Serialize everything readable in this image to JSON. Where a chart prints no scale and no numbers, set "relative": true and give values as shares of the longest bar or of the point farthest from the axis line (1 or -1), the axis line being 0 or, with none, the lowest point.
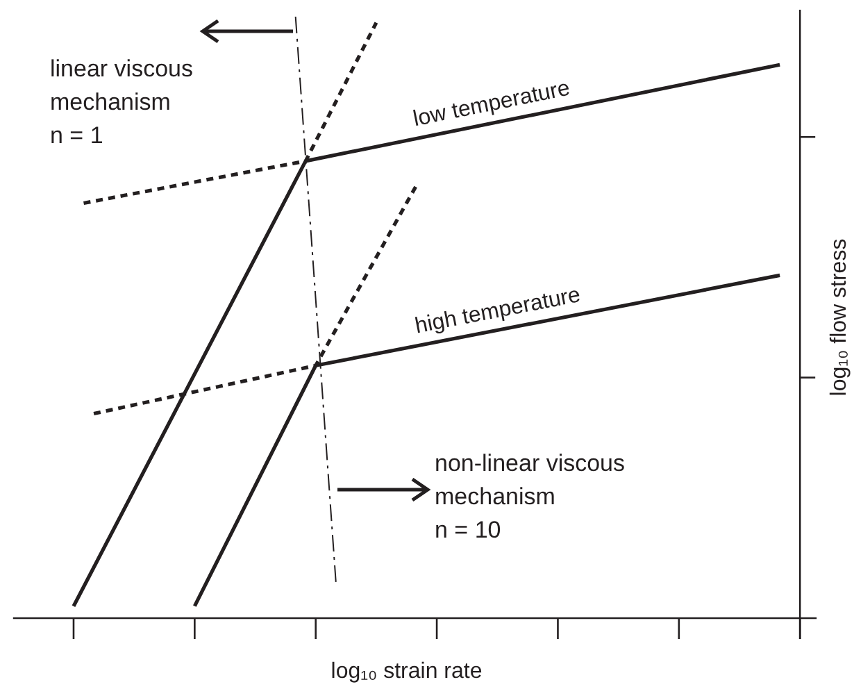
{
  "chart_data": {
    "type": "line",
    "relative": true,
    "xlabel": "log₁₀ strain rate",
    "ylabel": "log₁₀ flow stress",
    "categories": [
      null,
      null,
      null,
      null,
      null,
      null,
      null,
      null,
      null,
      null,
      null,
      null,
      null,
      null,
      null,
      null,
      null,
      null,
      null,
      null,
      null,
      null,
      null,
      null,
      null,
      null,
      null,
      null,
      null,
      null,
      null,
      null,
      null,
      null,
      null,
      null,
      null,
      null,
      null,
      null,
      null,
      null,
      null,
      null,
      null,
      null,
      null,
      null,
      null,
      null,
      null,
      null,
      null,
      null,
      null,
      null,
      null,
      null,
      null,
      null,
      null,
      null,
      null,
      null,
      null,
      null,
      null,
      null,
      null,
      null,
      null,
      null,
      null,
      null,
      null,
      null,
      null,
      null,
      null
    ],
    "series": [
      {
        "name": "low temperature",
        "color": "#231f20",
        "line_style": "solid",
        "values": [
          null,
          null,
          null,
          null,
          null,
          null,
          0.02,
          null,
          null,
          null,
          null,
          null,
          null,
          null,
          null,
          null,
          null,
          null,
          null,
          null,
          null,
          null,
          null,
          null,
          null,
          null,
          null,
          null,
          null,
          0.76,
          null,
          null,
          null,
          null,
          null,
          null,
          null,
          null,
          null,
          null,
          null,
          null,
          null,
          null,
          null,
          null,
          null,
          null,
          null,
          null,
          null,
          null,
          null,
          null,
          null,
          null,
          null,
          null,
          null,
          null,
          null,
          null,
          null,
          null,
          null,
          null,
          null,
          null,
          null,
          null,
          null,
          null,
          null,
          null,
          null,
          null,
          0.92,
          null,
          null
        ]
      },
      {
        "color": "#231f20",
        "line_style": "dotted",
        "values": [
          null,
          null,
          null,
          null,
          null,
          null,
          null,
          0.69,
          null,
          null,
          null,
          null,
          null,
          null,
          null,
          null,
          null,
          null,
          null,
          null,
          null,
          null,
          null,
          null,
          null,
          null,
          null,
          null,
          null,
          0.76,
          null,
          null,
          null,
          null,
          null,
          null,
          0.99,
          null,
          null,
          null,
          null,
          null,
          null,
          null,
          null,
          null,
          null,
          null,
          null,
          null,
          null,
          null,
          null,
          null,
          null,
          null,
          null,
          null,
          null,
          null,
          null,
          null,
          null,
          null,
          null,
          null,
          null,
          null,
          null,
          null,
          null,
          null,
          null,
          null,
          null,
          null,
          null,
          null,
          null
        ]
      },
      {
        "name": "high temperature",
        "color": "#231f20",
        "line_style": "solid",
        "values": [
          null,
          null,
          null,
          null,
          null,
          null,
          null,
          null,
          null,
          null,
          null,
          null,
          null,
          null,
          null,
          null,
          null,
          null,
          0.02,
          null,
          null,
          null,
          null,
          null,
          null,
          null,
          null,
          null,
          null,
          null,
          0.42,
          null,
          null,
          null,
          null,
          null,
          null,
          null,
          null,
          null,
          null,
          null,
          null,
          null,
          null,
          null,
          null,
          null,
          null,
          null,
          null,
          null,
          null,
          null,
          null,
          null,
          null,
          null,
          null,
          null,
          null,
          null,
          null,
          null,
          null,
          null,
          null,
          null,
          null,
          null,
          null,
          null,
          null,
          null,
          null,
          null,
          0.57,
          null,
          null
        ]
      },
      {
        "color": "#231f20",
        "line_style": "dotted",
        "values": [
          null,
          null,
          null,
          null,
          null,
          null,
          null,
          null,
          0.34,
          null,
          null,
          null,
          null,
          null,
          null,
          null,
          null,
          null,
          null,
          null,
          null,
          null,
          null,
          null,
          null,
          null,
          null,
          null,
          null,
          null,
          0.42,
          null,
          null,
          null,
          null,
          null,
          null,
          null,
          null,
          null,
          0.72,
          null,
          null,
          null,
          null,
          null,
          null,
          null,
          null,
          null,
          null,
          null,
          null,
          null,
          null,
          null,
          null,
          null,
          null,
          null,
          null,
          null,
          null,
          null,
          null,
          null,
          null,
          null,
          null,
          null,
          null,
          null,
          null,
          null,
          null,
          null,
          null,
          null,
          null
        ]
      },
      {
        "color": "#231f20",
        "line_style": "dashed",
        "values": [
          null,
          null,
          null,
          null,
          null,
          null,
          null,
          null,
          null,
          null,
          null,
          null,
          null,
          null,
          null,
          null,
          null,
          null,
          null,
          null,
          null,
          null,
          null,
          null,
          null,
          null,
          null,
          null,
          1,
          null,
          null,
          null,
          0.06,
          null,
          null,
          null,
          null,
          null,
          null,
          null,
          null,
          null,
          null,
          null,
          null,
          null,
          null,
          null,
          null,
          null,
          null,
          null,
          null,
          null,
          null,
          null,
          null,
          null,
          null,
          null,
          null,
          null,
          null,
          null,
          null,
          null,
          null,
          null,
          null,
          null,
          null,
          null,
          null,
          null,
          null,
          null,
          null,
          null,
          null
        ]
      }
    ],
    "annotations": [
      "linear viscous\nmechanism\nn = 1",
      "non-linear viscous\nmechanism\nn = 10"
    ],
    "legend": false,
    "marker": "none"
  }
}
